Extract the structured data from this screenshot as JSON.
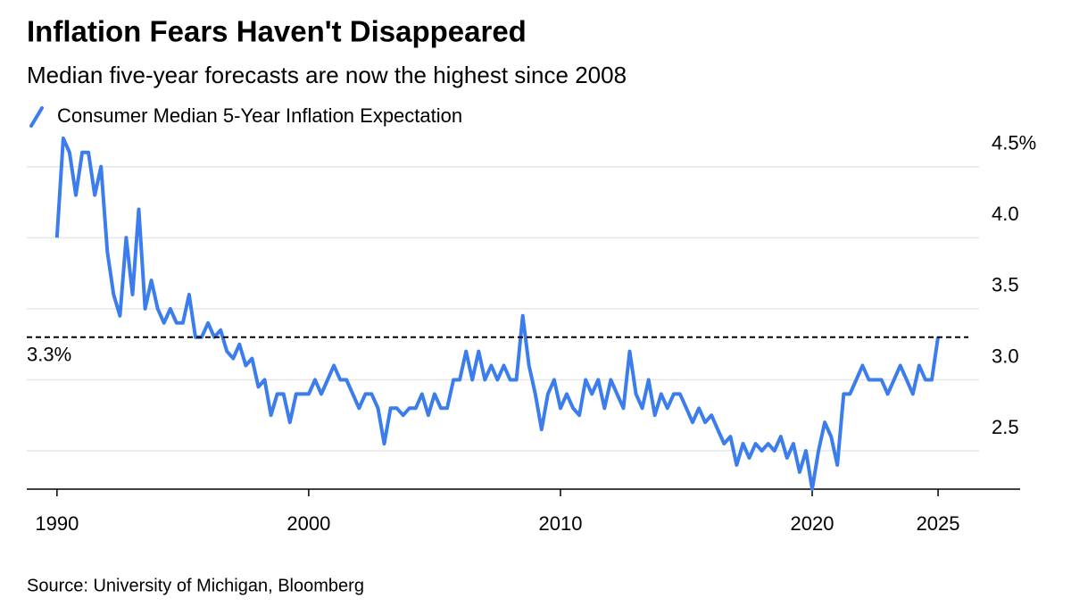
{
  "chart_data": {
    "type": "line",
    "title": "Inflation Fears Haven't Disappeared",
    "subtitle": "Median five-year forecasts are now the highest since 2008",
    "source": "Source: University of Michigan, Bloomberg",
    "x": [
      1990,
      1990.25,
      1990.5,
      1990.75,
      1991,
      1991.25,
      1991.5,
      1991.75,
      1992,
      1992.25,
      1992.5,
      1992.75,
      1993,
      1993.25,
      1993.5,
      1993.75,
      1994,
      1994.25,
      1994.5,
      1994.75,
      1995,
      1995.25,
      1995.5,
      1995.75,
      1996,
      1996.25,
      1996.5,
      1996.75,
      1997,
      1997.25,
      1997.5,
      1997.75,
      1998,
      1998.25,
      1998.5,
      1998.75,
      1999,
      1999.25,
      1999.5,
      1999.75,
      2000,
      2000.25,
      2000.5,
      2000.75,
      2001,
      2001.25,
      2001.5,
      2001.75,
      2002,
      2002.25,
      2002.5,
      2002.75,
      2003,
      2003.25,
      2003.5,
      2003.75,
      2004,
      2004.25,
      2004.5,
      2004.75,
      2005,
      2005.25,
      2005.5,
      2005.75,
      2006,
      2006.25,
      2006.5,
      2006.75,
      2007,
      2007.25,
      2007.5,
      2007.75,
      2008,
      2008.25,
      2008.5,
      2008.75,
      2009,
      2009.25,
      2009.5,
      2009.75,
      2010,
      2010.25,
      2010.5,
      2010.75,
      2011,
      2011.25,
      2011.5,
      2011.75,
      2012,
      2012.25,
      2012.5,
      2012.75,
      2013,
      2013.25,
      2013.5,
      2013.75,
      2014,
      2014.25,
      2014.5,
      2014.75,
      2015,
      2015.25,
      2015.5,
      2015.75,
      2016,
      2016.25,
      2016.5,
      2016.75,
      2017,
      2017.25,
      2017.5,
      2017.75,
      2018,
      2018.25,
      2018.5,
      2018.75,
      2019,
      2019.25,
      2019.5,
      2019.75,
      2020,
      2020.25,
      2020.5,
      2020.75,
      2021,
      2021.25,
      2021.5,
      2021.75,
      2022,
      2022.25,
      2022.5,
      2022.75,
      2023,
      2023.25,
      2023.5,
      2023.75,
      2024,
      2024.25,
      2024.5,
      2024.75,
      2025
    ],
    "series": [
      {
        "name": "Consumer Median 5-Year Inflation Expectation",
        "color": "#3b7ded",
        "values": [
          4.0,
          4.7,
          4.6,
          4.3,
          4.6,
          4.6,
          4.3,
          4.5,
          3.9,
          3.6,
          3.45,
          4.0,
          3.6,
          4.2,
          3.5,
          3.7,
          3.5,
          3.4,
          3.5,
          3.4,
          3.4,
          3.6,
          3.3,
          3.3,
          3.4,
          3.3,
          3.35,
          3.2,
          3.15,
          3.25,
          3.1,
          3.15,
          2.95,
          3.0,
          2.75,
          2.9,
          2.9,
          2.7,
          2.9,
          2.9,
          2.9,
          3.0,
          2.9,
          3.0,
          3.1,
          3.0,
          3.0,
          2.9,
          2.8,
          2.9,
          2.9,
          2.8,
          2.55,
          2.8,
          2.8,
          2.75,
          2.8,
          2.8,
          2.9,
          2.75,
          2.9,
          2.8,
          2.8,
          3.0,
          3.0,
          3.2,
          3.0,
          3.2,
          3.0,
          3.1,
          3.0,
          3.1,
          3.0,
          3.0,
          3.45,
          3.1,
          2.9,
          2.65,
          2.9,
          3.0,
          2.8,
          2.9,
          2.8,
          2.75,
          3.0,
          2.9,
          3.0,
          2.8,
          3.0,
          2.9,
          2.8,
          3.2,
          2.9,
          2.8,
          3.0,
          2.75,
          2.9,
          2.8,
          2.9,
          2.9,
          2.8,
          2.7,
          2.8,
          2.7,
          2.75,
          2.65,
          2.55,
          2.6,
          2.4,
          2.55,
          2.45,
          2.55,
          2.5,
          2.55,
          2.5,
          2.6,
          2.45,
          2.55,
          2.35,
          2.5,
          2.23,
          2.5,
          2.7,
          2.6,
          2.4,
          2.9,
          2.9,
          3.0,
          3.1,
          3.0,
          3.0,
          3.0,
          2.9,
          3.0,
          3.1,
          3.0,
          2.9,
          3.1,
          3.0,
          3.0,
          3.3
        ]
      }
    ],
    "xlim": [
      1988.8,
      2028.26
    ],
    "xticks": [
      1990,
      2000,
      2010,
      2020,
      2025
    ],
    "ylim": [
      2.23,
      4.8
    ],
    "yticks": [
      {
        "value": 2.5,
        "label": "2.5"
      },
      {
        "value": 3,
        "label": "3.0"
      },
      {
        "value": 3.5,
        "label": "3.5"
      },
      {
        "value": 4,
        "label": "4.0"
      },
      {
        "value": 4.5,
        "label": "4.5%"
      }
    ],
    "grid": true,
    "reference_line": {
      "value": 3.3,
      "label": "3.3%"
    }
  }
}
